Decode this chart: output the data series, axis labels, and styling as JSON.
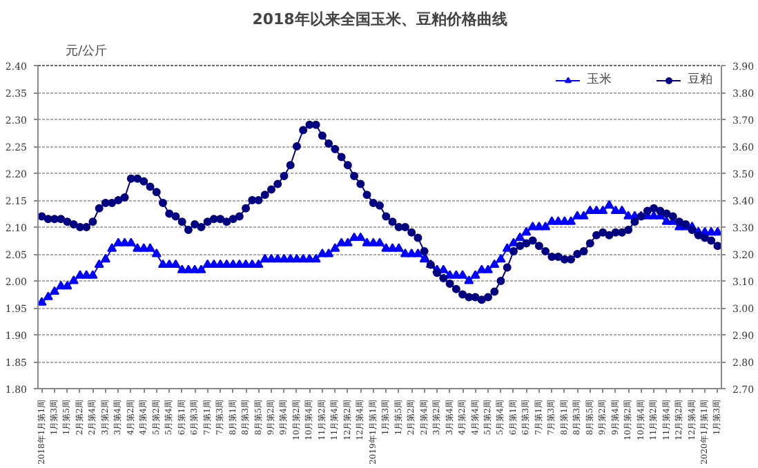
{
  "chart_data": {
    "type": "line",
    "title": "2018年以来全国玉米、豆粕价格曲线",
    "ylabel": "元/公斤",
    "categories": [
      "2018年1月第1周",
      null,
      "1月第3周",
      null,
      "1月第5周",
      null,
      "2月第2周",
      null,
      "2月第4周",
      null,
      "3月第2周",
      null,
      "3月第4周",
      null,
      "4月第2周",
      null,
      "4月第4周",
      null,
      "5月第2周",
      null,
      "5月第4周",
      null,
      "6月第1周",
      null,
      "6月第3周",
      null,
      "7月第1周",
      null,
      "7月第3周",
      null,
      "8月第1周",
      null,
      "8月第3周",
      null,
      "8月第5周",
      null,
      "9月第2周",
      null,
      "9月第4周",
      null,
      "10月第2周",
      null,
      "10月第4周",
      null,
      "11月第2周",
      null,
      "11月第4周",
      null,
      "12月第2周",
      null,
      "12月第4周",
      null,
      "2019年1月第1周",
      null,
      "1月第3周",
      null,
      "1月第5周",
      null,
      "2月第2周",
      null,
      "2月第4周",
      null,
      "3月第2周",
      null,
      "3月第4周",
      null,
      "4月第2周",
      null,
      "4月第4周",
      null,
      "5月第2周",
      null,
      "5月第4周",
      null,
      "6月第1周",
      null,
      "6月第3周",
      null,
      "7月第1周",
      null,
      "7月第3周",
      null,
      "8月第1周",
      null,
      "8月第3周",
      null,
      "8月第5周",
      null,
      "9月第2周",
      null,
      "9月第4周",
      null,
      "10月第2周",
      null,
      "10月第4周",
      null,
      "11月第2周",
      null,
      "11月第4周",
      null,
      "12月第2周",
      null,
      "12月第4周",
      null,
      "2020年1月第1周",
      null,
      "1月第3周"
    ],
    "series": [
      {
        "name": "玉米",
        "color": "#0000ff",
        "marker": "triangle",
        "values": [
          1.96,
          1.97,
          1.98,
          1.99,
          1.99,
          2.0,
          2.01,
          2.01,
          2.01,
          2.03,
          2.04,
          2.06,
          2.07,
          2.07,
          2.07,
          2.06,
          2.06,
          2.06,
          2.05,
          2.03,
          2.03,
          2.03,
          2.02,
          2.02,
          2.02,
          2.02,
          2.03,
          2.03,
          2.03,
          2.03,
          2.03,
          2.03,
          2.03,
          2.03,
          2.03,
          2.04,
          2.04,
          2.04,
          2.04,
          2.04,
          2.04,
          2.04,
          2.04,
          2.04,
          2.05,
          2.05,
          2.06,
          2.07,
          2.07,
          2.08,
          2.08,
          2.07,
          2.07,
          2.07,
          2.06,
          2.06,
          2.06,
          2.05,
          2.05,
          2.05,
          2.04,
          2.03,
          2.02,
          2.02,
          2.01,
          2.01,
          2.01,
          2.0,
          2.01,
          2.02,
          2.02,
          2.03,
          2.04,
          2.06,
          2.07,
          2.08,
          2.09,
          2.1,
          2.1,
          2.1,
          2.11,
          2.11,
          2.11,
          2.11,
          2.12,
          2.12,
          2.13,
          2.13,
          2.13,
          2.14,
          2.13,
          2.13,
          2.12,
          2.12,
          2.12,
          2.12,
          2.12,
          2.12,
          2.11,
          2.11,
          2.1,
          2.1,
          2.1,
          2.09,
          2.09,
          2.09,
          2.09
        ]
      },
      {
        "name": "豆粕",
        "color": "#000080",
        "marker": "circle",
        "axis": "y2",
        "values": [
          3.34,
          3.33,
          3.33,
          3.33,
          3.32,
          3.31,
          3.3,
          3.3,
          3.32,
          3.37,
          3.39,
          3.39,
          3.4,
          3.41,
          3.48,
          3.48,
          3.47,
          3.45,
          3.43,
          3.39,
          3.35,
          3.34,
          3.32,
          3.29,
          3.31,
          3.3,
          3.32,
          3.33,
          3.33,
          3.32,
          3.33,
          3.34,
          3.37,
          3.4,
          3.4,
          3.42,
          3.44,
          3.46,
          3.49,
          3.53,
          3.6,
          3.66,
          3.68,
          3.68,
          3.64,
          3.61,
          3.59,
          3.56,
          3.53,
          3.49,
          3.46,
          3.42,
          3.39,
          3.38,
          3.34,
          3.32,
          3.3,
          3.3,
          3.28,
          3.26,
          3.21,
          3.16,
          3.13,
          3.11,
          3.09,
          3.07,
          3.05,
          3.04,
          3.04,
          3.03,
          3.04,
          3.06,
          3.1,
          3.15,
          3.21,
          3.23,
          3.24,
          3.25,
          3.23,
          3.21,
          3.19,
          3.19,
          3.18,
          3.18,
          3.2,
          3.21,
          3.24,
          3.27,
          3.28,
          3.27,
          3.28,
          3.28,
          3.29,
          3.32,
          3.34,
          3.36,
          3.37,
          3.36,
          3.35,
          3.34,
          3.32,
          3.31,
          3.29,
          3.27,
          3.26,
          3.25,
          3.23
        ]
      }
    ],
    "ylim": [
      1.8,
      2.4
    ],
    "yticks": [
      {
        "value": 1.8,
        "label": "1.80"
      },
      {
        "value": 1.85,
        "label": "1.85"
      },
      {
        "value": 1.9,
        "label": "1.90"
      },
      {
        "value": 1.95,
        "label": "1.95"
      },
      {
        "value": 2.0,
        "label": "2.00"
      },
      {
        "value": 2.05,
        "label": "2.05"
      },
      {
        "value": 2.1,
        "label": "2.10"
      },
      {
        "value": 2.15,
        "label": "2.15"
      },
      {
        "value": 2.2,
        "label": "2.20"
      },
      {
        "value": 2.25,
        "label": "2.25"
      },
      {
        "value": 2.3,
        "label": "2.30"
      },
      {
        "value": 2.35,
        "label": "2.35"
      },
      {
        "value": 2.4,
        "label": "2.40"
      }
    ],
    "y2lim": [
      2.7,
      3.9
    ],
    "y2ticks": [
      {
        "value": 2.7,
        "label": "2.70"
      },
      {
        "value": 2.8,
        "label": "2.80"
      },
      {
        "value": 2.9,
        "label": "2.90"
      },
      {
        "value": 3.0,
        "label": "3.00"
      },
      {
        "value": 3.1,
        "label": "3.10"
      },
      {
        "value": 3.2,
        "label": "3.20"
      },
      {
        "value": 3.3,
        "label": "3.30"
      },
      {
        "value": 3.4,
        "label": "3.40"
      },
      {
        "value": 3.5,
        "label": "3.50"
      },
      {
        "value": 3.6,
        "label": "3.60"
      },
      {
        "value": 3.7,
        "label": "3.70"
      },
      {
        "value": 3.8,
        "label": "3.80"
      },
      {
        "value": 3.9,
        "label": "3.90"
      }
    ],
    "grid": "y",
    "legend": "top right",
    "line_style": "solid"
  }
}
